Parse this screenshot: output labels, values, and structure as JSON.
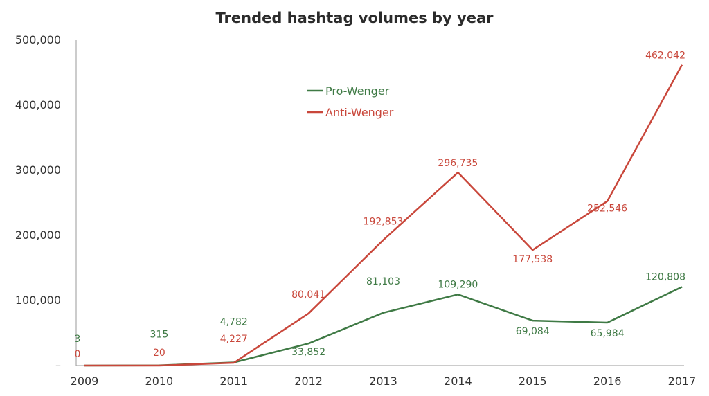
{
  "chart_data": {
    "type": "line",
    "title": "Trended hashtag volumes by year",
    "xlabel": "",
    "ylabel": "",
    "x": [
      "2009",
      "2010",
      "2011",
      "2012",
      "2013",
      "2014",
      "2015",
      "2016",
      "2017"
    ],
    "ylim": [
      0,
      500000
    ],
    "yticks": [
      "–",
      "100,000",
      "200,000",
      "300,000",
      "400,000",
      "500,000"
    ],
    "grid": false,
    "legend_position": "top-center",
    "series": [
      {
        "name": "Pro-Wenger",
        "color": "#3f7a45",
        "values": [
          3,
          315,
          4782,
          33852,
          81103,
          109290,
          69084,
          65984,
          120808
        ],
        "labels": [
          "3",
          "315",
          "4,782",
          "33,852",
          "81,103",
          "109,290",
          "69,084",
          "65,984",
          "120,808"
        ]
      },
      {
        "name": "Anti-Wenger",
        "color": "#c9473b",
        "values": [
          0,
          20,
          4227,
          80041,
          192853,
          296735,
          177538,
          252546,
          462042
        ],
        "labels": [
          "0",
          "20",
          "4,227",
          "80,041",
          "192,853",
          "296,735",
          "177,538",
          "252,546",
          "462,042"
        ]
      }
    ]
  }
}
